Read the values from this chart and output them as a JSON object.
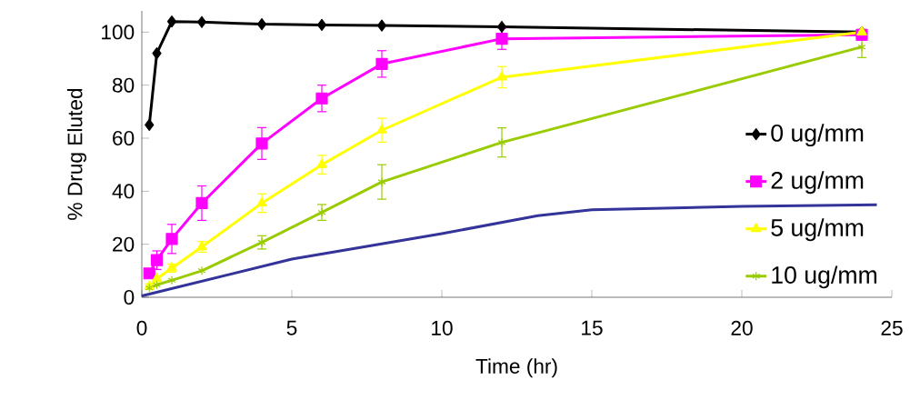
{
  "chart_data": {
    "type": "line",
    "xlabel": "Time (hr)",
    "ylabel": "% Drug Eluted",
    "xlim": [
      0,
      25
    ],
    "ylim": [
      0,
      108
    ],
    "xticks": [
      0,
      5,
      10,
      15,
      20,
      25
    ],
    "yticks": [
      0,
      20,
      40,
      60,
      80,
      100
    ],
    "grid": false,
    "legend": "bottom right",
    "series": [
      {
        "name": "0 ug/mm",
        "color": "#000000",
        "marker": "diamond",
        "x": [
          0.25,
          0.5,
          1,
          2,
          4,
          6,
          8,
          12,
          24
        ],
        "values": [
          65,
          92,
          104,
          103.8,
          103,
          102.7,
          102.5,
          102,
          100
        ]
      },
      {
        "name": "2 ug/mm",
        "color": "#ff00ff",
        "marker": "square",
        "x": [
          0.25,
          0.5,
          1,
          2,
          4,
          6,
          8,
          12,
          24
        ],
        "values": [
          9,
          14,
          22,
          35.5,
          58,
          75,
          88,
          97.5,
          99
        ],
        "errors": [
          1,
          3.5,
          5.5,
          6.5,
          6,
          5,
          5,
          4,
          2
        ]
      },
      {
        "name": "5 ug/mm",
        "color": "#ffff00",
        "marker": "triangle",
        "x": [
          0.25,
          0.5,
          1,
          2,
          4,
          6,
          8,
          12,
          24
        ],
        "values": [
          4,
          7,
          11,
          19,
          35.5,
          50,
          63,
          83,
          100
        ],
        "errors": [
          1,
          1,
          1.5,
          2,
          3.5,
          3.5,
          4.5,
          4,
          1
        ]
      },
      {
        "name": "10 ug/mm",
        "color": "#99cc00",
        "marker": "cross",
        "x": [
          0.25,
          0.5,
          1,
          2,
          4,
          6,
          8,
          12,
          24
        ],
        "values": [
          3.5,
          4.7,
          6.4,
          10,
          20.7,
          32,
          43.5,
          58.4,
          94.4
        ],
        "errors": [
          null,
          null,
          null,
          null,
          2.5,
          3,
          6.5,
          5.5,
          4
        ]
      },
      {
        "color": "#333399",
        "marker": "none",
        "x": [
          0,
          5,
          10,
          13.2,
          15,
          20,
          24.5
        ],
        "values": [
          0.5,
          14.4,
          24,
          30.8,
          33,
          34.3,
          34.9
        ]
      }
    ]
  }
}
